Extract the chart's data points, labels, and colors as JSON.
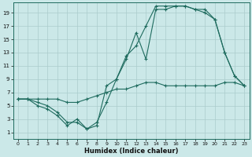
{
  "xlabel": "Humidex (Indice chaleur)",
  "bg_color": "#cbe8e8",
  "grid_color": "#aacccc",
  "line_color": "#1e6b5e",
  "xlim": [
    -0.5,
    23.5
  ],
  "ylim": [
    0,
    20.5
  ],
  "xticks": [
    0,
    1,
    2,
    3,
    4,
    5,
    6,
    7,
    8,
    9,
    10,
    11,
    12,
    13,
    14,
    15,
    16,
    17,
    18,
    19,
    20,
    21,
    22,
    23
  ],
  "yticks": [
    1,
    3,
    5,
    7,
    9,
    11,
    13,
    15,
    17,
    19
  ],
  "line1_x": [
    0,
    1,
    2,
    3,
    4,
    5,
    6,
    7,
    8,
    9,
    10,
    11,
    12,
    13,
    14,
    15,
    16,
    17,
    18,
    19,
    20,
    21,
    22,
    23
  ],
  "line1_y": [
    6,
    6,
    5.5,
    5,
    4,
    2.5,
    2.5,
    1.5,
    2.5,
    5.5,
    9,
    12,
    16,
    12,
    19.5,
    19.5,
    20,
    20,
    19.5,
    19.5,
    18,
    13,
    9.5,
    8
  ],
  "line2_x": [
    0,
    1,
    2,
    3,
    4,
    5,
    6,
    7,
    8,
    9,
    10,
    11,
    12,
    13,
    14,
    15,
    16,
    17,
    18,
    19,
    20,
    21,
    22,
    23
  ],
  "line2_y": [
    6,
    6,
    5,
    4.5,
    3.5,
    2,
    3,
    1.5,
    2,
    8,
    9,
    12.5,
    14,
    17,
    20,
    20,
    20,
    20,
    19.5,
    19,
    18,
    13,
    9.5,
    8
  ],
  "line3_x": [
    0,
    1,
    2,
    3,
    4,
    5,
    6,
    7,
    8,
    9,
    10,
    11,
    12,
    13,
    14,
    15,
    16,
    17,
    18,
    19,
    20,
    21,
    22,
    23
  ],
  "line3_y": [
    6,
    6,
    6,
    6,
    6,
    5.5,
    5.5,
    6,
    6.5,
    7,
    7.5,
    7.5,
    8,
    8.5,
    8.5,
    8,
    8,
    8,
    8,
    8,
    8,
    8.5,
    8.5,
    8
  ]
}
